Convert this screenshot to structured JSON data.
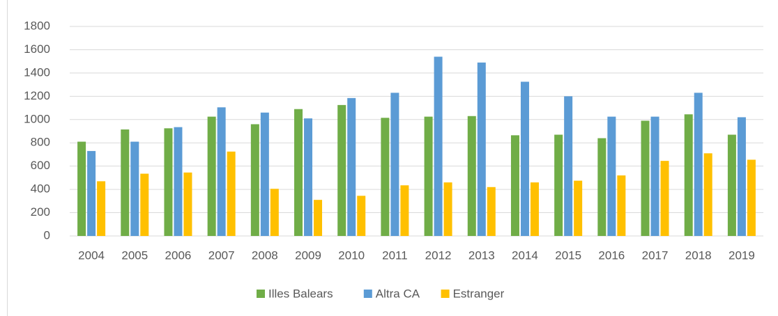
{
  "chart_data": {
    "type": "bar",
    "categories": [
      "2004",
      "2005",
      "2006",
      "2007",
      "2008",
      "2009",
      "2010",
      "2011",
      "2012",
      "2013",
      "2014",
      "2015",
      "2016",
      "2017",
      "2018",
      "2019"
    ],
    "series": [
      {
        "name": "Illes Balears",
        "color": "#70ad47",
        "values": [
          810,
          915,
          925,
          1025,
          960,
          1090,
          1125,
          1015,
          1025,
          1030,
          865,
          870,
          840,
          990,
          1045,
          870
        ]
      },
      {
        "name": "Altra CA",
        "color": "#5b9bd5",
        "values": [
          730,
          810,
          935,
          1105,
          1060,
          1010,
          1185,
          1230,
          1540,
          1490,
          1325,
          1200,
          1025,
          1025,
          1230,
          1020
        ]
      },
      {
        "name": "Estranger",
        "color": "#ffc000",
        "values": [
          470,
          535,
          545,
          725,
          405,
          310,
          345,
          435,
          460,
          420,
          460,
          475,
          520,
          645,
          710,
          655
        ]
      }
    ],
    "ylim": [
      0,
      1800
    ],
    "yticks": [
      0,
      200,
      400,
      600,
      800,
      1000,
      1200,
      1400,
      1600,
      1800
    ],
    "grid": true,
    "legend": "bottom"
  }
}
